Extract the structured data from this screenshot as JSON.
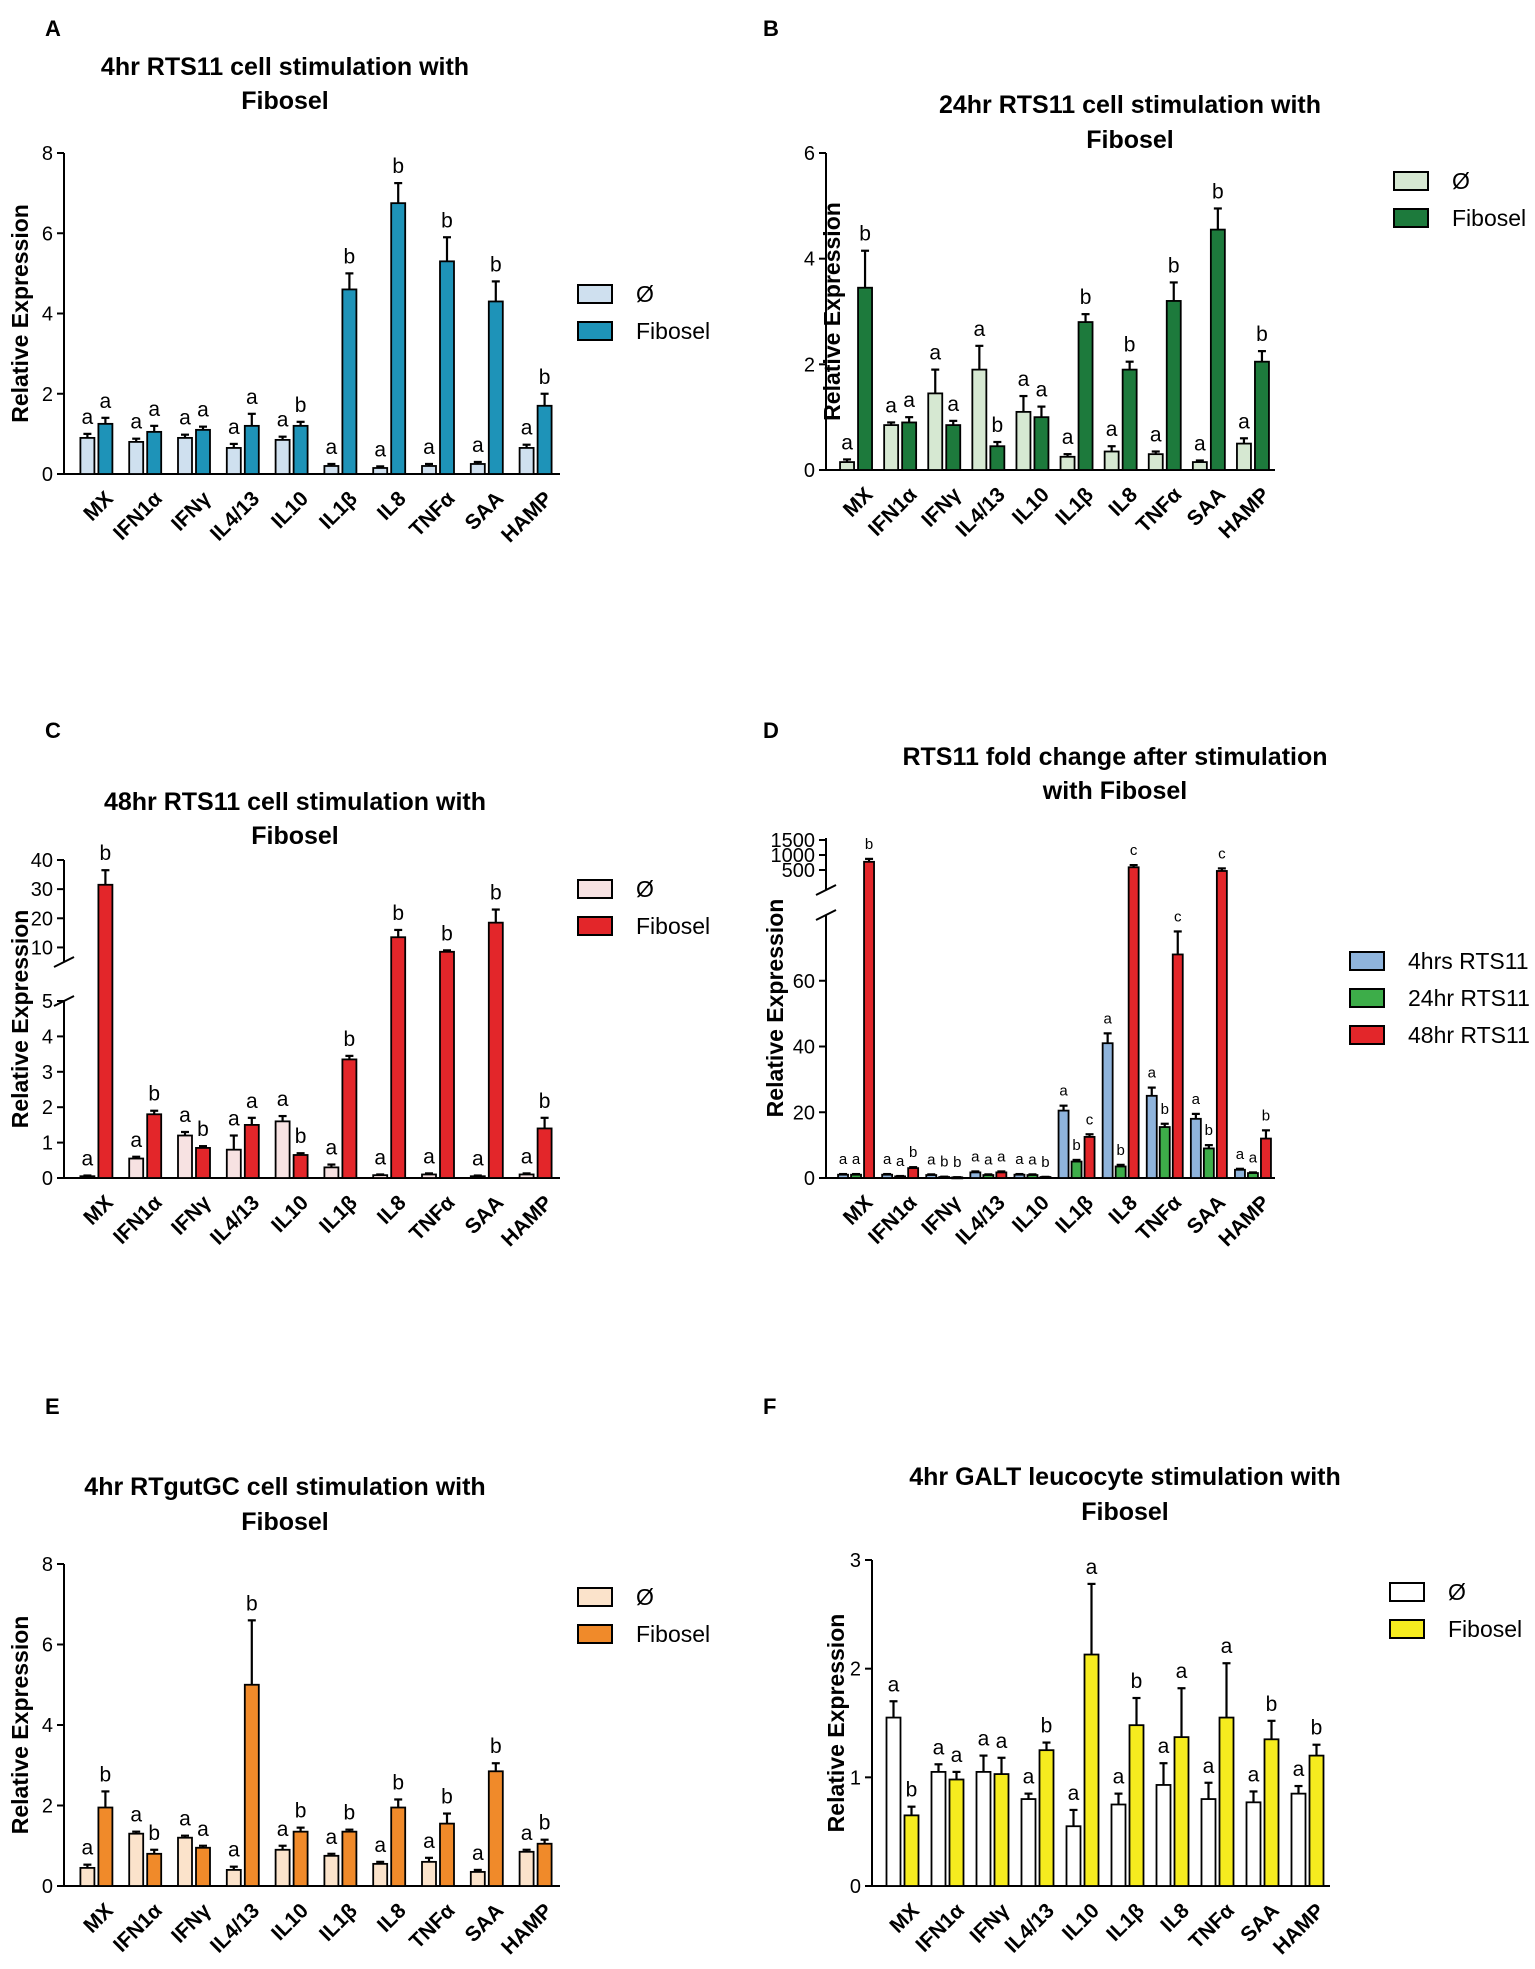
{
  "categories": [
    "MX",
    "IFN1α",
    "IFNγ",
    "IL4/13",
    "IL10",
    "IL1β",
    "IL8",
    "TNFα",
    "SAA",
    "HAMP"
  ],
  "ylabel": "Relative Expression",
  "chart_data": [
    {
      "panel": "A",
      "type": "bar",
      "title": [
        "4hr RTS11 cell stimulation with",
        "Fibosel"
      ],
      "ylabel": "Relative Expression",
      "categories": [
        "MX",
        "IFN1α",
        "IFNγ",
        "IL4/13",
        "IL10",
        "IL1β",
        "IL8",
        "TNFα",
        "SAA",
        "HAMP"
      ],
      "ylim": [
        0,
        8
      ],
      "yticks": [
        0,
        2,
        4,
        6,
        8
      ],
      "legend": "right",
      "series": [
        {
          "name": "Ø",
          "color": "#cfe0ef",
          "values": [
            0.9,
            0.8,
            0.9,
            0.65,
            0.85,
            0.2,
            0.15,
            0.2,
            0.25,
            0.65
          ],
          "errors": [
            0.1,
            0.08,
            0.08,
            0.1,
            0.08,
            0.05,
            0.04,
            0.05,
            0.05,
            0.08
          ],
          "letters": [
            "a",
            "a",
            "a",
            "a",
            "a",
            "a",
            "a",
            "a",
            "a",
            "a"
          ]
        },
        {
          "name": "Fibosel",
          "color": "#1e93b8",
          "values": [
            1.25,
            1.05,
            1.1,
            1.2,
            1.2,
            4.6,
            6.75,
            5.3,
            4.3,
            1.7
          ],
          "errors": [
            0.15,
            0.15,
            0.08,
            0.3,
            0.1,
            0.4,
            0.5,
            0.6,
            0.5,
            0.3
          ],
          "letters": [
            "a",
            "a",
            "a",
            "a",
            "b",
            "b",
            "b",
            "b",
            "b",
            "b"
          ]
        }
      ]
    },
    {
      "panel": "B",
      "type": "bar",
      "title": [
        "24hr RTS11 cell stimulation with",
        "Fibosel"
      ],
      "ylabel": "Relative Expression",
      "categories": [
        "MX",
        "IFN1α",
        "IFNγ",
        "IL4/13",
        "IL10",
        "IL1β",
        "IL8",
        "TNFα",
        "SAA",
        "HAMP"
      ],
      "ylim": [
        0,
        6
      ],
      "yticks": [
        0,
        2,
        4,
        6
      ],
      "legend": "right",
      "series": [
        {
          "name": "Ø",
          "color": "#d6e8d2",
          "values": [
            0.15,
            0.85,
            1.45,
            1.9,
            1.1,
            0.25,
            0.35,
            0.3,
            0.15,
            0.5
          ],
          "errors": [
            0.05,
            0.05,
            0.45,
            0.45,
            0.3,
            0.05,
            0.1,
            0.05,
            0.03,
            0.1
          ],
          "letters": [
            "a",
            "a",
            "a",
            "a",
            "a",
            "a",
            "a",
            "a",
            "a",
            "a"
          ]
        },
        {
          "name": "Fibosel",
          "color": "#1d7a3c",
          "values": [
            3.45,
            0.9,
            0.85,
            0.45,
            1.0,
            2.8,
            1.9,
            3.2,
            4.55,
            2.05
          ],
          "errors": [
            0.7,
            0.1,
            0.08,
            0.08,
            0.2,
            0.15,
            0.15,
            0.35,
            0.4,
            0.2
          ],
          "letters": [
            "b",
            "a",
            "a",
            "b",
            "a",
            "b",
            "b",
            "b",
            "b",
            "b"
          ]
        }
      ]
    },
    {
      "panel": "C",
      "type": "bar",
      "title": [
        "48hr RTS11 cell stimulation with",
        "Fibosel"
      ],
      "ylabel": "Relative Expression",
      "categories": [
        "MX",
        "IFN1α",
        "IFNγ",
        "IL4/13",
        "IL10",
        "IL1β",
        "IL8",
        "TNFα",
        "SAA",
        "HAMP"
      ],
      "axis_break": true,
      "ylim_lower": [
        0,
        5
      ],
      "yticks_lower": [
        0,
        1,
        2,
        3,
        4,
        5
      ],
      "ylim_upper": [
        5,
        40
      ],
      "yticks_upper": [
        10,
        20,
        30,
        40
      ],
      "legend": "right",
      "series": [
        {
          "name": "Ø",
          "color": "#f7e2e2",
          "values": [
            0.05,
            0.55,
            1.2,
            0.8,
            1.6,
            0.3,
            0.08,
            0.1,
            0.05,
            0.1
          ],
          "errors": [
            0.02,
            0.05,
            0.1,
            0.4,
            0.15,
            0.08,
            0.02,
            0.03,
            0.02,
            0.03
          ],
          "letters": [
            "a",
            "a",
            "a",
            "a",
            "a",
            "a",
            "a",
            "a",
            "a",
            "a"
          ]
        },
        {
          "name": "Fibosel",
          "color": "#e3262a",
          "values": [
            31.5,
            1.8,
            0.85,
            1.5,
            0.65,
            3.35,
            13.5,
            8.5,
            18.5,
            1.4
          ],
          "errors": [
            5,
            0.1,
            0.05,
            0.2,
            0.05,
            0.1,
            2.5,
            0.5,
            4.5,
            0.3
          ],
          "letters": [
            "b",
            "b",
            "b",
            "a",
            "b",
            "b",
            "b",
            "b",
            "b",
            "b"
          ]
        }
      ]
    },
    {
      "panel": "D",
      "type": "bar",
      "title": [
        "RTS11 fold change after stimulation",
        "with Fibosel"
      ],
      "ylabel": "Relative Expression",
      "categories": [
        "MX",
        "IFN1α",
        "IFNγ",
        "IL4/13",
        "IL10",
        "IL1β",
        "IL8",
        "TNFα",
        "SAA",
        "HAMP"
      ],
      "axis_break": true,
      "ylim_lower": [
        0,
        80
      ],
      "yticks_lower": [
        0,
        20,
        40,
        60
      ],
      "yticks_upper": [
        500,
        1000,
        1500
      ],
      "legend": "right",
      "series": [
        {
          "name": "4hrs RTS11",
          "color": "#8fb4dc",
          "values": [
            1,
            1,
            0.9,
            1.7,
            1,
            20.5,
            41,
            25,
            18,
            2.5
          ],
          "errors": [
            0.2,
            0.2,
            0.2,
            0.3,
            0.2,
            1.5,
            3,
            2.5,
            1.5,
            0.3
          ],
          "letters": [
            "a",
            "a",
            "a",
            "a",
            "a",
            "a",
            "a",
            "a",
            "a",
            "a"
          ]
        },
        {
          "name": "24hr RTS11",
          "color": "#3dad49",
          "values": [
            1,
            0.5,
            0.3,
            0.9,
            0.9,
            5,
            3.5,
            15.5,
            9,
            1.5
          ],
          "errors": [
            0.2,
            0.1,
            0.1,
            0.2,
            0.2,
            0.5,
            0.5,
            1,
            1,
            0.2
          ],
          "letters": [
            "a",
            "a",
            "b",
            "a",
            "a",
            "b",
            "b",
            "b",
            "b",
            "a"
          ]
        },
        {
          "name": "48hr RTS11",
          "color": "#e3262a",
          "values": [
            850,
            3,
            0.2,
            1.7,
            0.3,
            12.5,
            700,
            68,
            600,
            12
          ],
          "errors": [
            80,
            0.3,
            0.05,
            0.3,
            0.05,
            0.8,
            60,
            7,
            70,
            2.5
          ],
          "letters": [
            "b",
            "b",
            "b",
            "a",
            "b",
            "c",
            "c",
            "c",
            "c",
            "b"
          ]
        }
      ]
    },
    {
      "panel": "E",
      "type": "bar",
      "title": [
        "4hr RTgutGC cell stimulation with",
        "Fibosel"
      ],
      "ylabel": "Relative Expression",
      "categories": [
        "MX",
        "IFN1α",
        "IFNγ",
        "IL4/13",
        "IL10",
        "IL1β",
        "IL8",
        "TNFα",
        "SAA",
        "HAMP"
      ],
      "ylim": [
        0,
        8
      ],
      "yticks": [
        0,
        2,
        4,
        6,
        8
      ],
      "legend": "right",
      "series": [
        {
          "name": "Ø",
          "color": "#fbe3cb",
          "values": [
            0.45,
            1.3,
            1.2,
            0.4,
            0.9,
            0.75,
            0.55,
            0.6,
            0.35,
            0.85
          ],
          "errors": [
            0.08,
            0.05,
            0.05,
            0.08,
            0.1,
            0.05,
            0.05,
            0.1,
            0.05,
            0.05
          ],
          "letters": [
            "a",
            "a",
            "a",
            "a",
            "a",
            "a",
            "a",
            "a",
            "a",
            "a"
          ]
        },
        {
          "name": "Fibosel",
          "color": "#f08a2a",
          "values": [
            1.95,
            0.8,
            0.95,
            5.0,
            1.35,
            1.35,
            1.95,
            1.55,
            2.85,
            1.05
          ],
          "errors": [
            0.4,
            0.1,
            0.05,
            1.6,
            0.1,
            0.05,
            0.2,
            0.25,
            0.2,
            0.1
          ],
          "letters": [
            "b",
            "b",
            "a",
            "b",
            "b",
            "b",
            "b",
            "b",
            "b",
            "b"
          ]
        }
      ]
    },
    {
      "panel": "F",
      "type": "bar",
      "title": [
        "4hr GALT leucocyte stimulation with",
        "Fibosel"
      ],
      "ylabel": "Relative Expression",
      "categories": [
        "MX",
        "IFN1α",
        "IFNγ",
        "IL4/13",
        "IL10",
        "IL1β",
        "IL8",
        "TNFα",
        "SAA",
        "HAMP"
      ],
      "ylim": [
        0,
        3
      ],
      "yticks": [
        0,
        1,
        2,
        3
      ],
      "legend": "right",
      "series": [
        {
          "name": "Ø",
          "color": "#ffffff",
          "values": [
            1.55,
            1.05,
            1.05,
            0.8,
            0.55,
            0.75,
            0.93,
            0.8,
            0.77,
            0.85
          ],
          "errors": [
            0.15,
            0.07,
            0.15,
            0.05,
            0.15,
            0.1,
            0.2,
            0.15,
            0.1,
            0.07
          ],
          "letters": [
            "a",
            "a",
            "a",
            "a",
            "a",
            "a",
            "a",
            "a",
            "a",
            "a"
          ]
        },
        {
          "name": "Fibosel",
          "color": "#f6ec1f",
          "values": [
            0.65,
            0.98,
            1.03,
            1.25,
            2.13,
            1.48,
            1.37,
            1.55,
            1.35,
            1.2
          ],
          "errors": [
            0.08,
            0.07,
            0.15,
            0.07,
            0.65,
            0.25,
            0.45,
            0.5,
            0.17,
            0.1
          ],
          "letters": [
            "b",
            "a",
            "a",
            "b",
            "a",
            "b",
            "a",
            "a",
            "b",
            "b"
          ]
        }
      ]
    }
  ]
}
